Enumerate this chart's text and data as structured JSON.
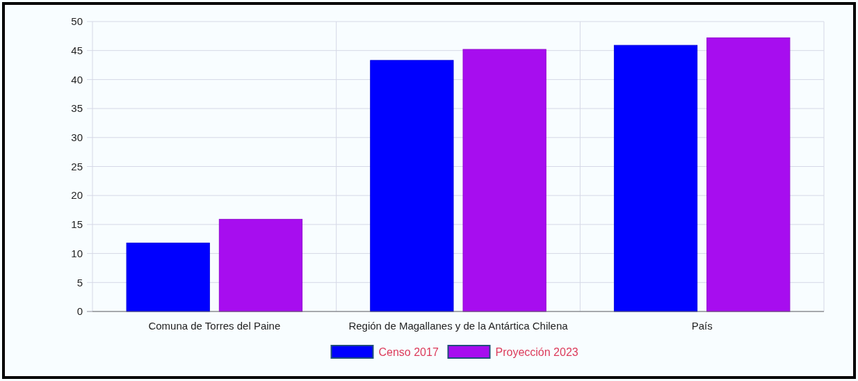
{
  "chart_data": {
    "type": "bar",
    "categories": [
      "Comuna de Torres del Paine",
      "Región de Magallanes y de la Antártica Chilena",
      "País"
    ],
    "series": [
      {
        "name": "Censo 2017",
        "color": "#0000ff",
        "values": [
          11.8,
          43.3,
          45.9
        ]
      },
      {
        "name": "Proyección 2023",
        "color": "#a70def",
        "values": [
          15.9,
          45.2,
          47.2
        ]
      }
    ],
    "ylim": [
      0,
      50
    ],
    "yticks": [
      0,
      5,
      10,
      15,
      20,
      25,
      30,
      35,
      40,
      45,
      50
    ],
    "grid": true,
    "legend": "bottom"
  }
}
